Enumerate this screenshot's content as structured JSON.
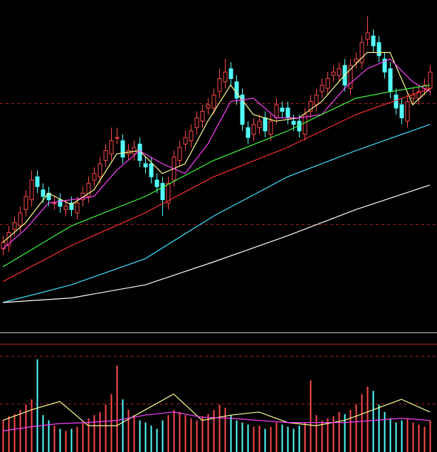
{
  "chart_data": [
    {
      "type": "candlestick",
      "xlim": [
        -0.5,
        76.25
      ],
      "ylim": [
        0,
        100
      ],
      "yticks": [
        31.5,
        68.5
      ],
      "grid": true,
      "up_color": "#ff4a4a",
      "down_color": "#54ffff",
      "grid_color": "#a02020",
      "open": [
        24,
        25,
        30,
        31,
        36,
        39,
        46,
        42,
        41,
        38,
        39,
        36,
        38,
        35,
        39,
        40,
        45,
        46,
        51,
        53,
        58,
        57,
        53,
        53,
        56,
        50,
        50,
        45,
        44,
        38,
        45,
        51,
        56,
        57,
        61,
        63,
        67,
        67,
        72,
        75,
        79,
        75,
        71,
        61,
        59,
        61,
        64,
        59,
        64,
        67,
        67,
        63,
        63,
        59,
        66,
        68,
        72,
        73,
        77,
        77,
        80,
        73,
        81,
        81,
        88,
        89,
        87,
        82,
        79,
        71,
        68,
        63,
        70,
        70,
        73,
        73
      ],
      "high": [
        28,
        31,
        34,
        37,
        42,
        48,
        48,
        44,
        43,
        40,
        41,
        39,
        40,
        40,
        43,
        46,
        49,
        52,
        56,
        61,
        61,
        59,
        56,
        57,
        58,
        52,
        52,
        47,
        46,
        46,
        54,
        57,
        60,
        62,
        66,
        68,
        70,
        73,
        79,
        82,
        81,
        77,
        73,
        63,
        64,
        65,
        66,
        65,
        70,
        69,
        69,
        65,
        65,
        67,
        71,
        73,
        76,
        78,
        80,
        81,
        82,
        82,
        84,
        89,
        95,
        91,
        89,
        84,
        81,
        73,
        70,
        71,
        73,
        74,
        76,
        80
      ],
      "low": [
        22,
        23,
        28,
        29,
        34,
        37,
        41,
        38,
        37,
        36,
        35,
        34,
        34,
        33,
        37,
        38,
        43,
        44,
        49,
        51,
        56,
        50,
        51,
        51,
        49,
        47,
        44,
        41,
        34,
        36,
        43,
        49,
        54,
        55,
        59,
        61,
        65,
        65,
        70,
        73,
        74,
        68,
        60,
        56,
        57,
        59,
        58,
        57,
        62,
        64,
        62,
        60,
        58,
        57,
        64,
        66,
        70,
        71,
        75,
        75,
        72,
        71,
        79,
        79,
        86,
        84,
        81,
        76,
        70,
        65,
        62,
        61,
        68,
        68,
        71,
        71
      ],
      "close": [
        26,
        29,
        32,
        35,
        40,
        45,
        43,
        40,
        39,
        38,
        37,
        37,
        36,
        38,
        41,
        44,
        47,
        50,
        54,
        57,
        58,
        52,
        54,
        55,
        51,
        49,
        46,
        43,
        39,
        44,
        52,
        55,
        58,
        60,
        64,
        66,
        68,
        71,
        76,
        78,
        76,
        70,
        62,
        58,
        62,
        63,
        60,
        63,
        68,
        66,
        64,
        62,
        60,
        65,
        69,
        71,
        74,
        76,
        78,
        79,
        74,
        80,
        82,
        87,
        90,
        86,
        83,
        78,
        72,
        67,
        64,
        69,
        71,
        72,
        74,
        78
      ],
      "lines": [
        {
          "color": "#ffff90",
          "x": [
            0,
            4,
            8,
            12,
            16,
            20,
            24,
            28,
            32,
            36,
            40,
            44,
            48,
            52,
            56,
            60,
            64,
            68,
            72,
            75
          ],
          "values": [
            26,
            32,
            41,
            37.5,
            42,
            53,
            54,
            47,
            50,
            63,
            74,
            65,
            63,
            64,
            69,
            77,
            84,
            84,
            68,
            73
          ]
        },
        {
          "color": "#ff40ff",
          "x": [
            0,
            4,
            8,
            12,
            16,
            20,
            24,
            28,
            32,
            36,
            40,
            44,
            48,
            52,
            56,
            60,
            64,
            68,
            72,
            75
          ],
          "values": [
            24,
            30,
            38,
            39,
            40,
            48,
            54,
            50,
            47,
            56,
            69,
            70,
            64,
            64,
            65,
            73,
            79,
            82,
            75,
            72
          ]
        },
        {
          "color": "#40ff40",
          "x": [
            0,
            12,
            25,
            37,
            50,
            62,
            68,
            75
          ],
          "values": [
            18.5,
            31,
            40,
            51,
            60,
            70,
            72,
            74
          ]
        },
        {
          "color": "#ff3030",
          "x": [
            0,
            12,
            25,
            37,
            50,
            62,
            75
          ],
          "values": [
            14,
            25,
            35,
            46,
            55,
            65,
            73
          ]
        },
        {
          "color": "#40e0ff",
          "x": [
            0,
            12,
            25,
            37,
            50,
            62,
            75
          ],
          "values": [
            7.6,
            13,
            21,
            34,
            46,
            54,
            62
          ]
        },
        {
          "color": "#ffffff",
          "x": [
            0,
            12,
            25,
            37,
            50,
            62,
            75
          ],
          "values": [
            7.6,
            9,
            13,
            20,
            28,
            36,
            43.5
          ]
        }
      ]
    },
    {
      "type": "bar",
      "xlim": [
        -0.5,
        76.25
      ],
      "ylim": [
        0,
        100
      ],
      "yticks": [
        46,
        91
      ],
      "grid": true,
      "values": [
        30,
        34,
        36,
        40,
        45,
        50,
        88,
        35,
        30,
        25,
        22,
        20,
        22,
        24,
        28,
        32,
        35,
        38,
        45,
        55,
        82,
        50,
        40,
        35,
        30,
        28,
        25,
        22,
        30,
        35,
        40,
        38,
        35,
        32,
        30,
        34,
        36,
        40,
        45,
        42,
        35,
        30,
        28,
        26,
        24,
        25,
        22,
        24,
        28,
        26,
        24,
        22,
        25,
        28,
        68,
        35,
        30,
        32,
        34,
        38,
        36,
        40,
        45,
        55,
        62,
        58,
        45,
        38,
        32,
        28,
        30,
        32,
        28,
        26,
        24,
        30
      ],
      "lines": [
        {
          "color": "#ffff90",
          "x": [
            0,
            5,
            10,
            15,
            20,
            25,
            30,
            35,
            40,
            45,
            50,
            55,
            60,
            65,
            70,
            75
          ],
          "values": [
            30,
            40,
            48,
            25,
            25,
            40,
            55,
            30,
            35,
            38,
            28,
            25,
            30,
            40,
            50,
            38
          ]
        },
        {
          "color": "#ff40ff",
          "x": [
            0,
            5,
            10,
            15,
            20,
            25,
            30,
            35,
            40,
            45,
            50,
            55,
            60,
            65,
            70,
            75
          ],
          "values": [
            20,
            24,
            27,
            28,
            30,
            35,
            38,
            33,
            32,
            30,
            28,
            28,
            28,
            30,
            32,
            30
          ]
        }
      ]
    }
  ]
}
